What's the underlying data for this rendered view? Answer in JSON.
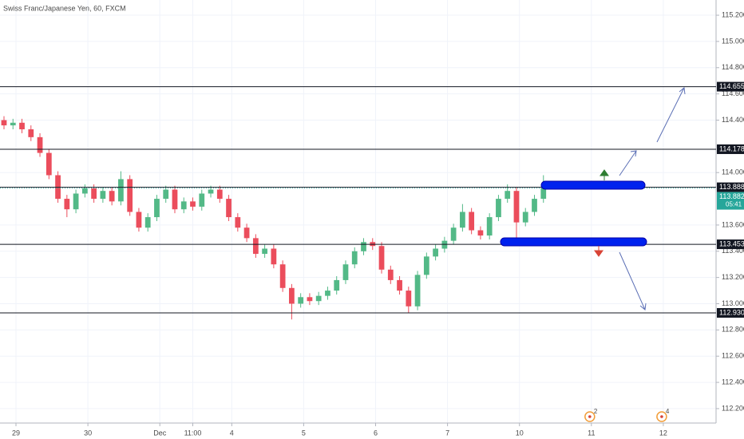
{
  "chart_data": {
    "type": "candlestick",
    "title": "Swiss Franc/Japanese Yen, 60, FXCM",
    "x": [
      -4,
      -1,
      2,
      5,
      8,
      11,
      14,
      17,
      20,
      23,
      26,
      29,
      32,
      35,
      38,
      41,
      44,
      47,
      50,
      53,
      56,
      59,
      62,
      65,
      68,
      71,
      74,
      77,
      80,
      83,
      86,
      89,
      92,
      95,
      98,
      101,
      104,
      107,
      110,
      113,
      116,
      119,
      122,
      125,
      128,
      131,
      134,
      137,
      140,
      143,
      146,
      149,
      152,
      155,
      158,
      161,
      164,
      167,
      170,
      173,
      176
    ],
    "ohlc": [
      [
        114.4,
        114.43,
        114.33,
        114.36
      ],
      [
        114.36,
        114.41,
        114.33,
        114.38
      ],
      [
        114.38,
        114.41,
        114.3,
        114.33
      ],
      [
        114.33,
        114.36,
        114.24,
        114.27
      ],
      [
        114.27,
        114.3,
        114.12,
        114.15
      ],
      [
        114.15,
        114.18,
        113.95,
        113.98
      ],
      [
        113.98,
        114.01,
        113.77,
        113.8
      ],
      [
        113.8,
        113.83,
        113.66,
        113.72
      ],
      [
        113.72,
        113.87,
        113.69,
        113.84
      ],
      [
        113.84,
        113.91,
        113.81,
        113.88
      ],
      [
        113.88,
        113.91,
        113.77,
        113.8
      ],
      [
        113.8,
        113.89,
        113.77,
        113.86
      ],
      [
        113.86,
        113.89,
        113.75,
        113.78
      ],
      [
        113.78,
        114.01,
        113.75,
        113.95
      ],
      [
        113.95,
        113.98,
        113.67,
        113.7
      ],
      [
        113.7,
        113.73,
        113.55,
        113.58
      ],
      [
        113.58,
        113.69,
        113.55,
        113.66
      ],
      [
        113.66,
        113.83,
        113.63,
        113.8
      ],
      [
        113.8,
        113.9,
        113.77,
        113.87
      ],
      [
        113.87,
        113.9,
        113.69,
        113.72
      ],
      [
        113.72,
        113.81,
        113.69,
        113.78
      ],
      [
        113.78,
        113.81,
        113.71,
        113.74
      ],
      [
        113.74,
        113.87,
        113.71,
        113.84
      ],
      [
        113.84,
        113.9,
        113.81,
        113.87
      ],
      [
        113.87,
        113.9,
        113.77,
        113.8
      ],
      [
        113.8,
        113.83,
        113.63,
        113.66
      ],
      [
        113.66,
        113.69,
        113.55,
        113.58
      ],
      [
        113.58,
        113.61,
        113.47,
        113.5
      ],
      [
        113.5,
        113.53,
        113.35,
        113.38
      ],
      [
        113.38,
        113.45,
        113.35,
        113.42
      ],
      [
        113.42,
        113.45,
        113.27,
        113.3
      ],
      [
        113.3,
        113.33,
        113.09,
        113.12
      ],
      [
        113.12,
        113.15,
        112.88,
        113.0
      ],
      [
        113.0,
        113.08,
        112.97,
        113.05
      ],
      [
        113.05,
        113.08,
        112.99,
        113.02
      ],
      [
        113.02,
        113.09,
        112.99,
        113.06
      ],
      [
        113.06,
        113.13,
        113.03,
        113.1
      ],
      [
        113.1,
        113.21,
        113.07,
        113.18
      ],
      [
        113.18,
        113.33,
        113.15,
        113.3
      ],
      [
        113.3,
        113.43,
        113.27,
        113.4
      ],
      [
        113.4,
        113.5,
        113.37,
        113.47
      ],
      [
        113.47,
        113.5,
        113.41,
        113.44
      ],
      [
        113.44,
        113.47,
        113.23,
        113.26
      ],
      [
        113.26,
        113.29,
        113.15,
        113.18
      ],
      [
        113.18,
        113.21,
        113.07,
        113.1
      ],
      [
        113.1,
        113.13,
        112.93,
        112.98
      ],
      [
        112.98,
        113.25,
        112.95,
        113.22
      ],
      [
        113.22,
        113.39,
        113.19,
        113.36
      ],
      [
        113.36,
        113.45,
        113.33,
        113.42
      ],
      [
        113.42,
        113.51,
        113.39,
        113.48
      ],
      [
        113.48,
        113.61,
        113.45,
        113.58
      ],
      [
        113.58,
        113.76,
        113.55,
        113.7
      ],
      [
        113.7,
        113.73,
        113.53,
        113.56
      ],
      [
        113.56,
        113.59,
        113.49,
        113.52
      ],
      [
        113.52,
        113.69,
        113.49,
        113.66
      ],
      [
        113.66,
        113.83,
        113.63,
        113.8
      ],
      [
        113.8,
        113.91,
        113.77,
        113.86
      ],
      [
        113.86,
        113.89,
        113.5,
        113.62
      ],
      [
        113.62,
        113.73,
        113.59,
        113.7
      ],
      [
        113.7,
        113.83,
        113.67,
        113.8
      ],
      [
        113.8,
        113.98,
        113.77,
        113.882
      ]
    ],
    "up_color": "#53b987",
    "down_color": "#eb4d5c",
    "levels": [
      114.655,
      114.178,
      113.888,
      113.453,
      {
        "value": 112.93,
        "label": "112.930"
      }
    ],
    "last_price": 113.882,
    "countdown": "05:41",
    "ylim": [
      112.09,
      115.316
    ],
    "yticks": [
      {
        "value": 115.2,
        "label": "115.200"
      },
      {
        "value": 115.0,
        "label": "115.000"
      },
      {
        "value": 114.8,
        "label": "114.800"
      },
      {
        "value": 114.6,
        "label": "114.600"
      },
      {
        "value": 114.4,
        "label": "114.400"
      },
      {
        "value": 114.0,
        "label": "114.000"
      },
      {
        "value": 113.6,
        "label": "113.600"
      },
      {
        "value": 113.4,
        "label": "113.400"
      },
      {
        "value": 113.2,
        "label": "113.200"
      },
      {
        "value": 113.0,
        "label": "113.000"
      },
      {
        "value": 112.8,
        "label": "112.800"
      },
      {
        "value": 112.6,
        "label": "112.600"
      },
      {
        "value": 112.4,
        "label": "112.400"
      },
      {
        "value": 112.2,
        "label": "112.200"
      }
    ],
    "xlim": [
      -5.33,
      233.6
    ],
    "xticks": [
      {
        "value": 0,
        "label": "29"
      },
      {
        "value": 24,
        "label": "30"
      },
      {
        "value": 48,
        "label": "Dec"
      },
      {
        "value": 59,
        "label": "11:00"
      },
      {
        "value": 72,
        "label": "4"
      },
      {
        "value": 96,
        "label": "5"
      },
      {
        "value": 120,
        "label": "6"
      },
      {
        "value": 144,
        "label": "7"
      },
      {
        "value": 168,
        "label": "10"
      },
      {
        "value": 192,
        "label": "11"
      },
      {
        "value": 216,
        "label": "12"
      }
    ],
    "events": [
      {
        "x": 192,
        "label": "2"
      },
      {
        "x": 216,
        "label": "4"
      }
    ],
    "grid": true
  }
}
